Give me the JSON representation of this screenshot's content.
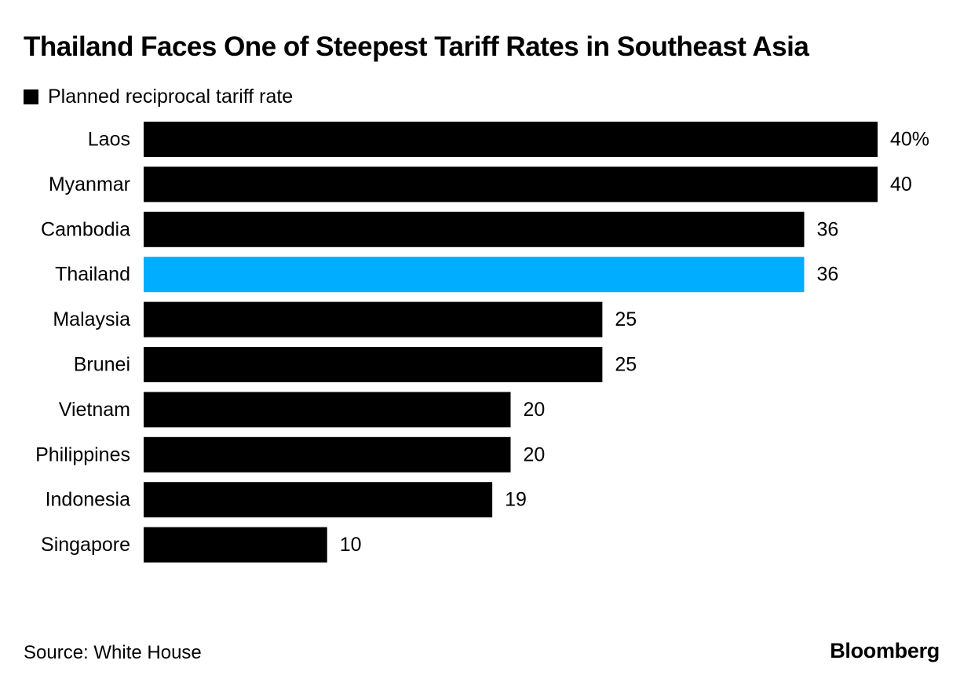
{
  "chart_data": {
    "type": "bar",
    "orientation": "horizontal",
    "title": "Thailand Faces One of Steepest Tariff Rates in Southeast Asia",
    "legend": {
      "label": "Planned reciprocal tariff rate",
      "placement": "top-left",
      "color": "#000000"
    },
    "categories": [
      "Laos",
      "Myanmar",
      "Cambodia",
      "Thailand",
      "Malaysia",
      "Brunei",
      "Vietnam",
      "Philippines",
      "Indonesia",
      "Singapore"
    ],
    "values": [
      40,
      40,
      36,
      36,
      25,
      25,
      20,
      20,
      19,
      10
    ],
    "data_labels": [
      "40%",
      "40",
      "36",
      "36",
      "25",
      "25",
      "20",
      "20",
      "19",
      "10"
    ],
    "bar_colors": [
      "#000000",
      "#000000",
      "#000000",
      "#00adff",
      "#000000",
      "#000000",
      "#000000",
      "#000000",
      "#000000",
      "#000000"
    ],
    "highlight": {
      "category": "Thailand",
      "color": "#00adff"
    },
    "xlim": [
      0,
      40
    ],
    "grid": false
  },
  "footer": {
    "source": "Source: White House",
    "brand": "Bloomberg"
  }
}
